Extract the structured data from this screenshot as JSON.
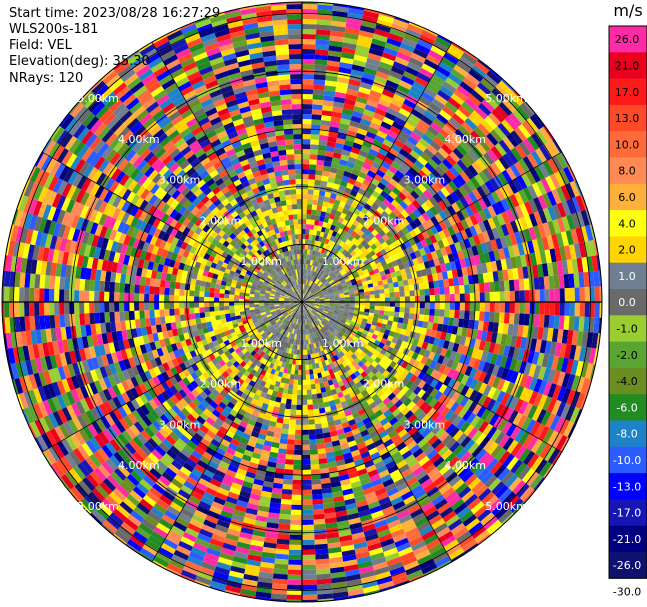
{
  "header": {
    "start_time": "Start time: 2023/08/28 16:27:29",
    "instrument": "WLS200s-181",
    "field": "Field: VEL",
    "elevation": "Elevation(deg): 35.30",
    "nrays": "NRays: 120"
  },
  "chart_data": {
    "type": "polar-ppi",
    "field": "VEL",
    "elevation_deg": 35.3,
    "nrays": 120,
    "unit": "m/s",
    "range_rings_km": [
      1.0,
      2.0,
      3.0,
      4.0,
      5.0
    ],
    "ring_labels": [
      "1.00km",
      "2.00km",
      "3.00km",
      "4.00km",
      "5.00km"
    ],
    "colorbar": {
      "unit_label": "m/s",
      "tick_labels": [
        "26.0",
        "21.0",
        "17.0",
        "13.0",
        "10.0",
        "8.0",
        "6.0",
        "4.0",
        "2.0",
        "1.0",
        "0.0",
        "-1.0",
        "-2.0",
        "-4.0",
        "-6.0",
        "-8.0",
        "-10.0",
        "-13.0",
        "-17.0",
        "-21.0",
        "-26.0",
        "-30.0"
      ],
      "bins": [
        {
          "label": "26.0",
          "color": "#ff2aa5"
        },
        {
          "label": "21.0",
          "color": "#e8001f"
        },
        {
          "label": "17.0",
          "color": "#ff1a1a"
        },
        {
          "label": "13.0",
          "color": "#ff4a2a"
        },
        {
          "label": "10.0",
          "color": "#ff6a3a"
        },
        {
          "label": "8.0",
          "color": "#ff8a55"
        },
        {
          "label": "6.0",
          "color": "#ffb03a"
        },
        {
          "label": "4.0",
          "color": "#ffff10"
        },
        {
          "label": "2.0",
          "color": "#ffd400"
        },
        {
          "label": "1.0",
          "color": "#6f7f91"
        },
        {
          "label": "0.0",
          "color": "#6a6a6a"
        },
        {
          "label": "-1.0",
          "color": "#9acd32"
        },
        {
          "label": "-2.0",
          "color": "#5aa532"
        },
        {
          "label": "-4.0",
          "color": "#6b8e23"
        },
        {
          "label": "-6.0",
          "color": "#228b22"
        },
        {
          "label": "-8.0",
          "color": "#1e82c8"
        },
        {
          "label": "-10.0",
          "color": "#2a5cff"
        },
        {
          "label": "-13.0",
          "color": "#0000ff"
        },
        {
          "label": "-17.0",
          "color": "#1616b4"
        },
        {
          "label": "-21.0",
          "color": "#000080"
        },
        {
          "label": "-26.0",
          "color": "#101070"
        }
      ]
    }
  }
}
